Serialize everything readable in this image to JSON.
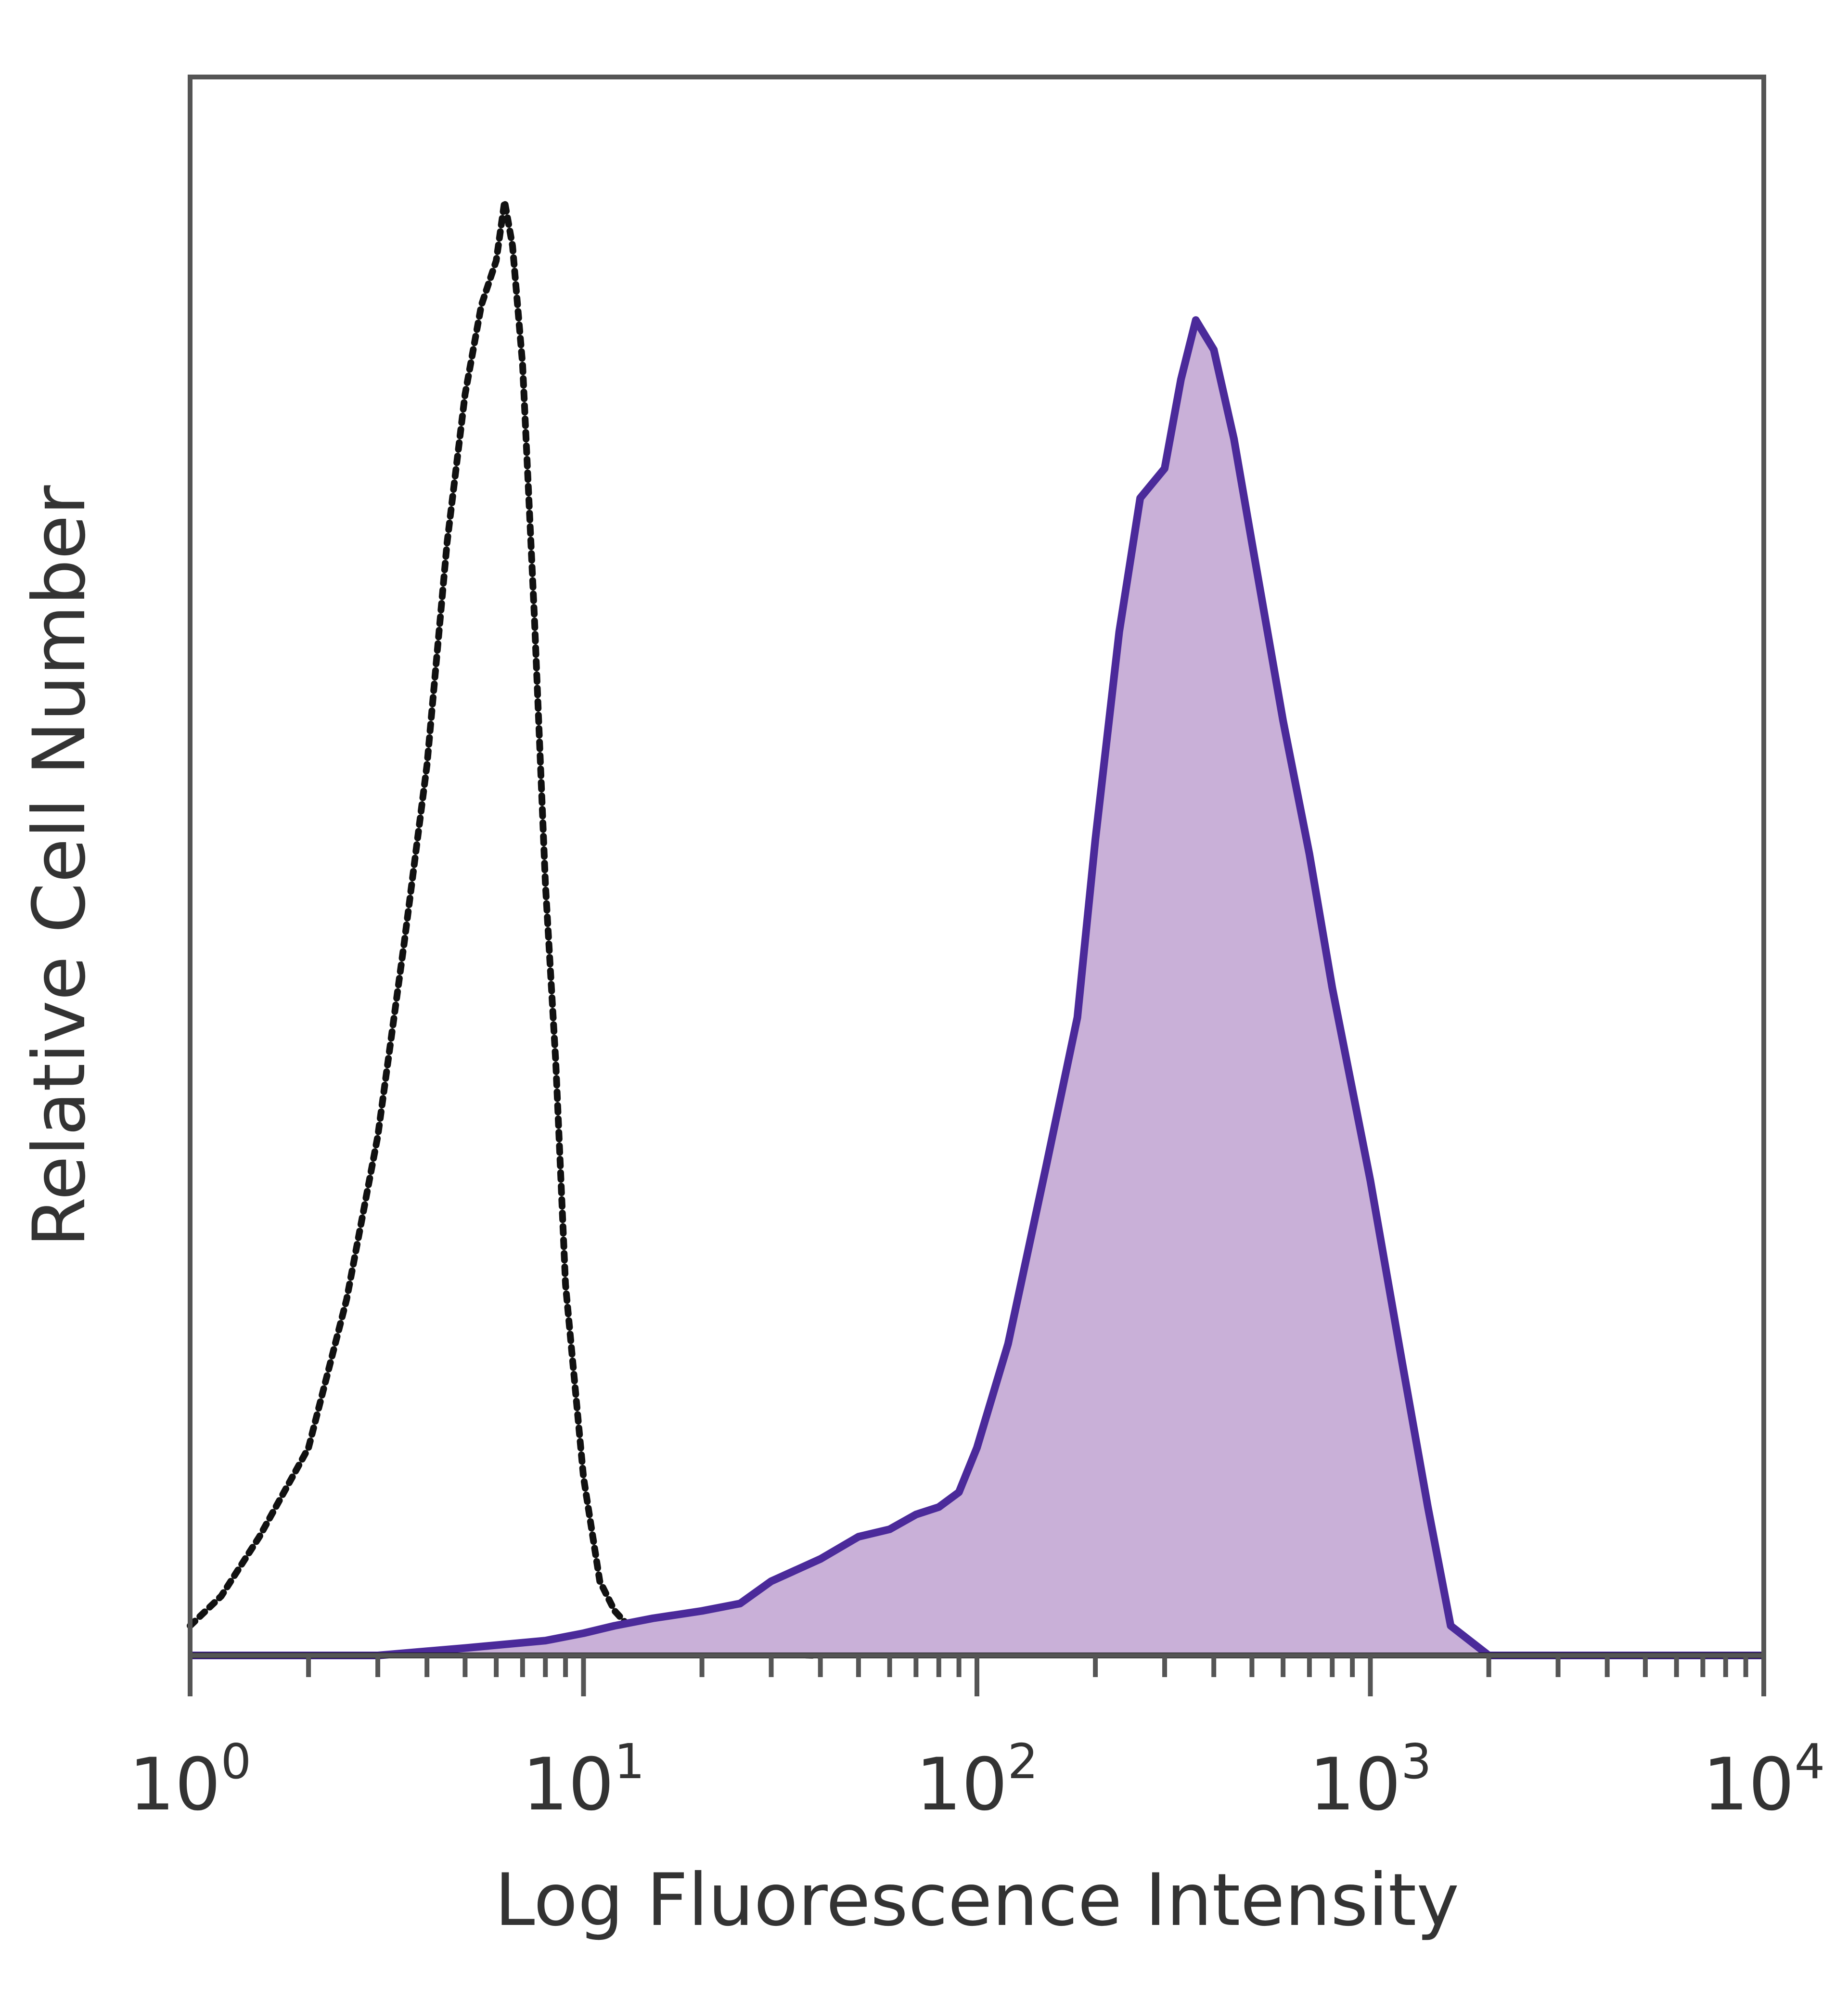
{
  "chart_data": {
    "type": "area",
    "xlabel": "Log Fluorescence Intensity",
    "ylabel": "Relative Cell Number",
    "xscale": "log",
    "xlim": [
      1,
      10000
    ],
    "ylim": [
      0,
      1
    ],
    "x_ticks": [
      {
        "base": "10",
        "exp": "0"
      },
      {
        "base": "10",
        "exp": "1"
      },
      {
        "base": "10",
        "exp": "2"
      },
      {
        "base": "10",
        "exp": "3"
      },
      {
        "base": "10",
        "exp": "4"
      }
    ],
    "colors": {
      "control": "#111111",
      "stained_line": "#4b2a9a",
      "stained_fill": "#c9b0d8",
      "frame": "#555555"
    },
    "series": [
      {
        "style": "dotted-outline",
        "x": [
          1,
          1.2,
          1.5,
          2,
          2.5,
          3,
          3.5,
          4,
          4.5,
          5,
          5.5,
          6,
          6.3,
          6.6,
          7,
          7.5,
          8,
          8.5,
          9,
          10,
          11,
          12,
          13,
          15,
          17,
          20,
          25,
          30,
          40
        ],
        "y": [
          0.02,
          0.04,
          0.08,
          0.14,
          0.24,
          0.35,
          0.48,
          0.6,
          0.75,
          0.85,
          0.91,
          0.94,
          0.98,
          0.95,
          0.87,
          0.7,
          0.52,
          0.4,
          0.25,
          0.12,
          0.05,
          0.03,
          0.02,
          0.01,
          0.006,
          0.004,
          0.002,
          0.001,
          0
        ]
      },
      {
        "style": "filled",
        "x": [
          1,
          3,
          5,
          8,
          10,
          12,
          15,
          20,
          25,
          30,
          40,
          50,
          60,
          70,
          80,
          90,
          100,
          120,
          150,
          180,
          200,
          230,
          260,
          300,
          330,
          360,
          400,
          450,
          500,
          600,
          700,
          800,
          1000,
          1200,
          1400,
          1600,
          2000,
          10000
        ],
        "y": [
          0,
          0,
          0.005,
          0.01,
          0.015,
          0.02,
          0.025,
          0.03,
          0.035,
          0.05,
          0.065,
          0.08,
          0.085,
          0.095,
          0.1,
          0.11,
          0.14,
          0.21,
          0.33,
          0.43,
          0.55,
          0.69,
          0.78,
          0.8,
          0.86,
          0.9,
          0.88,
          0.82,
          0.75,
          0.63,
          0.54,
          0.45,
          0.32,
          0.2,
          0.1,
          0.02,
          0,
          0
        ]
      }
    ]
  }
}
